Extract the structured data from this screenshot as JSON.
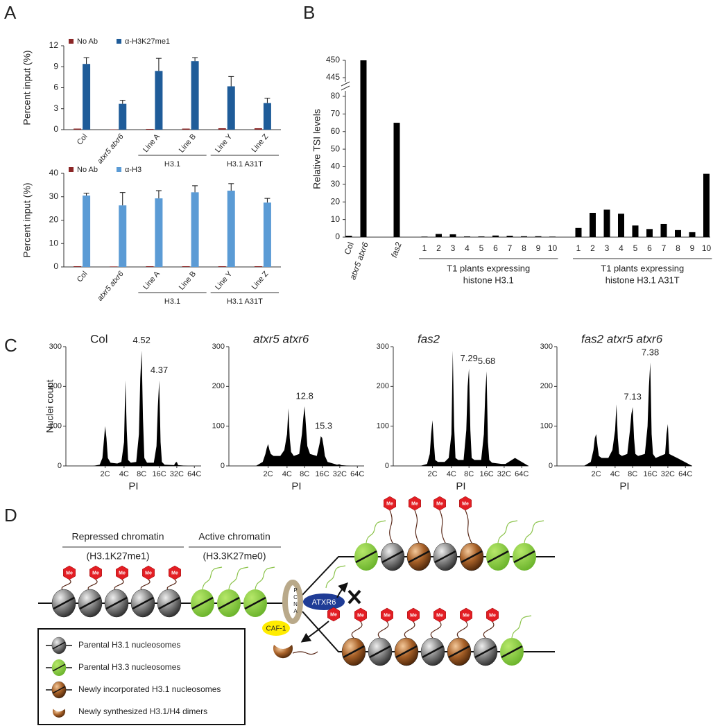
{
  "panel_labels": [
    "A",
    "B",
    "C",
    "D"
  ],
  "chart_data": [
    {
      "type": "bar",
      "ylabel": "Percent input (%)",
      "categories": [
        "Col",
        "atxr5 atxr6",
        "Line A",
        "Line B",
        "Line Y",
        "Line Z"
      ],
      "series": [
        {
          "name": "No Ab",
          "color": "#8b2626",
          "values": [
            0.15,
            0.05,
            0.1,
            0.15,
            0.2,
            0.2
          ]
        },
        {
          "name": "α-H3K27me1",
          "color": "#1f5c99",
          "values": [
            9.4,
            3.7,
            8.4,
            9.8,
            6.2,
            3.8
          ],
          "errors": [
            0.9,
            0.5,
            1.8,
            0.5,
            1.4,
            0.7
          ]
        }
      ],
      "groups": [
        {
          "label": "H3.1",
          "categories": [
            "Line A",
            "Line B"
          ]
        },
        {
          "label": "H3.1 A31T",
          "categories": [
            "Line Y",
            "Line Z"
          ]
        }
      ],
      "ylim": [
        0,
        12
      ],
      "yticks": [
        0,
        3,
        6,
        9,
        12
      ]
    },
    {
      "type": "bar",
      "ylabel": "Percent input (%)",
      "categories": [
        "Col",
        "atxr5 atxr6",
        "Line A",
        "Line B",
        "Line Y",
        "Line Z"
      ],
      "series": [
        {
          "name": "No Ab",
          "color": "#8b2626",
          "values": [
            0.3,
            0.2,
            0.3,
            0.3,
            0.3,
            0.3
          ]
        },
        {
          "name": "α-H3",
          "color": "#5b9bd5",
          "values": [
            30.5,
            26.3,
            29.3,
            31.9,
            32.6,
            27.5
          ],
          "errors": [
            1.0,
            5.5,
            3.3,
            2.8,
            3.0,
            1.8
          ]
        }
      ],
      "groups": [
        {
          "label": "H3.1",
          "categories": [
            "Line A",
            "Line B"
          ]
        },
        {
          "label": "H3.1 A31T",
          "categories": [
            "Line Y",
            "Line Z"
          ]
        }
      ],
      "ylim": [
        0,
        40
      ],
      "yticks": [
        0,
        10,
        20,
        30,
        40
      ]
    },
    {
      "type": "bar",
      "ylabel": "Relative TSI levels",
      "color": "#000000",
      "categories": [
        "Col",
        "atxr5 atxr6",
        "fas2"
      ],
      "values": [
        0.8,
        450,
        65
      ],
      "groups": [
        {
          "label": [
            "T1 plants expressing",
            "histone H3.1"
          ],
          "categories": [
            "1",
            "2",
            "3",
            "4",
            "5",
            "6",
            "7",
            "8",
            "9",
            "10"
          ],
          "values": [
            0.3,
            1.8,
            1.6,
            0.4,
            0.4,
            0.9,
            0.8,
            0.5,
            0.5,
            0.3
          ]
        },
        {
          "label": [
            "T1 plants expressing",
            "histone H3.1 A31T"
          ],
          "categories": [
            "1",
            "2",
            "3",
            "4",
            "5",
            "6",
            "7",
            "8",
            "9",
            "10"
          ],
          "values": [
            5.2,
            13.8,
            15.6,
            13.3,
            6.6,
            4.6,
            7.5,
            4.0,
            2.8,
            36
          ]
        }
      ],
      "ylim": [
        0,
        450
      ],
      "ybreak": [
        80,
        445
      ],
      "yticks": [
        0,
        10,
        20,
        30,
        40,
        50,
        60,
        70,
        80,
        445,
        450
      ]
    },
    {
      "type": "area",
      "title": "Col",
      "ylabel": "Nuclei count",
      "xlabel": "PI",
      "color": "#000000",
      "x": [
        20,
        25,
        27,
        28,
        29,
        30,
        31,
        33,
        38,
        41,
        43,
        44,
        45,
        46,
        48,
        52,
        54,
        55,
        56,
        57,
        58,
        60,
        65,
        67,
        68,
        69,
        70,
        71,
        73,
        80,
        81,
        82,
        83,
        90,
        100
      ],
      "values": [
        0,
        3,
        20,
        60,
        100,
        70,
        20,
        8,
        6,
        10,
        60,
        215,
        90,
        15,
        8,
        10,
        80,
        220,
        290,
        120,
        20,
        8,
        8,
        50,
        150,
        215,
        60,
        10,
        3,
        2,
        8,
        10,
        2,
        0,
        0
      ],
      "annotations": [
        {
          "text": "4.52",
          "x": 56,
          "y": 290
        },
        {
          "text": "4.37",
          "x": 69,
          "y": 215
        }
      ],
      "xlim": [
        0,
        100
      ],
      "xticks": [
        {
          "value": 29,
          "label": "2C"
        },
        {
          "value": 43,
          "label": "4C"
        },
        {
          "value": 56,
          "label": "8C"
        },
        {
          "value": 69,
          "label": "16C"
        },
        {
          "value": 82,
          "label": "32C"
        },
        {
          "value": 95,
          "label": "64C"
        }
      ],
      "ylim": [
        0,
        300
      ],
      "yticks": [
        0,
        100,
        200,
        300
      ]
    },
    {
      "type": "area",
      "title": "atxr5 atxr6",
      "xlabel": "PI",
      "color": "#000000",
      "x": [
        20,
        25,
        27,
        28,
        29,
        30,
        31,
        33,
        38,
        41,
        43,
        44,
        45,
        46,
        48,
        52,
        54,
        55,
        56,
        57,
        58,
        60,
        65,
        67,
        68,
        69,
        70,
        71,
        73,
        80,
        81,
        82,
        83,
        90,
        100
      ],
      "values": [
        0,
        10,
        30,
        45,
        55,
        40,
        30,
        25,
        25,
        40,
        80,
        145,
        70,
        35,
        25,
        30,
        80,
        120,
        150,
        100,
        50,
        30,
        25,
        55,
        75,
        70,
        50,
        25,
        10,
        3,
        4,
        4,
        2,
        0,
        0
      ],
      "annotations": [
        {
          "text": "12.8",
          "x": 56,
          "y": 150
        },
        {
          "text": "15.3",
          "x": 70,
          "y": 75
        }
      ],
      "xlim": [
        0,
        100
      ],
      "xticks": [
        {
          "value": 29,
          "label": "2C"
        },
        {
          "value": 43,
          "label": "4C"
        },
        {
          "value": 56,
          "label": "8C"
        },
        {
          "value": 69,
          "label": "16C"
        },
        {
          "value": 82,
          "label": "32C"
        },
        {
          "value": 95,
          "label": "64C"
        }
      ],
      "ylim": [
        0,
        300
      ],
      "yticks": [
        0,
        100,
        200,
        300
      ]
    },
    {
      "type": "area",
      "title": "fas2",
      "xlabel": "PI",
      "color": "#000000",
      "x": [
        20,
        25,
        27,
        28,
        29,
        30,
        31,
        33,
        38,
        41,
        43,
        44,
        45,
        46,
        48,
        52,
        54,
        55,
        56,
        57,
        58,
        60,
        65,
        67,
        68,
        69,
        70,
        71,
        73,
        80,
        81,
        82,
        83,
        90,
        100
      ],
      "values": [
        0,
        5,
        30,
        80,
        115,
        60,
        15,
        10,
        10,
        20,
        80,
        290,
        100,
        20,
        15,
        15,
        90,
        200,
        245,
        90,
        20,
        15,
        15,
        80,
        180,
        238,
        60,
        15,
        8,
        5,
        5,
        5,
        5,
        20,
        0
      ],
      "annotations": [
        {
          "text": "7.29",
          "x": 56,
          "y": 245
        },
        {
          "text": "5.68",
          "x": 69,
          "y": 238
        }
      ],
      "xlim": [
        0,
        100
      ],
      "xticks": [
        {
          "value": 29,
          "label": "2C"
        },
        {
          "value": 43,
          "label": "4C"
        },
        {
          "value": 56,
          "label": "8C"
        },
        {
          "value": 69,
          "label": "16C"
        },
        {
          "value": 82,
          "label": "32C"
        },
        {
          "value": 95,
          "label": "64C"
        }
      ],
      "ylim": [
        0,
        300
      ],
      "yticks": [
        0,
        100,
        200,
        300
      ]
    },
    {
      "type": "area",
      "title": "fas2 atxr5 atxr6",
      "xlabel": "PI",
      "color": "#000000",
      "x": [
        20,
        25,
        27,
        28,
        29,
        30,
        31,
        33,
        38,
        41,
        43,
        44,
        45,
        46,
        48,
        52,
        54,
        55,
        56,
        57,
        58,
        60,
        65,
        67,
        68,
        69,
        70,
        71,
        73,
        80,
        81,
        82,
        83,
        90,
        100
      ],
      "values": [
        0,
        10,
        40,
        70,
        80,
        50,
        25,
        20,
        20,
        40,
        90,
        155,
        70,
        30,
        25,
        30,
        90,
        130,
        148,
        70,
        30,
        25,
        30,
        100,
        200,
        260,
        80,
        30,
        20,
        30,
        80,
        105,
        30,
        18,
        0
      ],
      "annotations": [
        {
          "text": "7.13",
          "x": 56,
          "y": 148
        },
        {
          "text": "7.38",
          "x": 69,
          "y": 260
        }
      ],
      "xlim": [
        0,
        100
      ],
      "xticks": [
        {
          "value": 29,
          "label": "2C"
        },
        {
          "value": 43,
          "label": "4C"
        },
        {
          "value": 56,
          "label": "8C"
        },
        {
          "value": 69,
          "label": "16C"
        },
        {
          "value": 82,
          "label": "32C"
        },
        {
          "value": 95,
          "label": "64C"
        }
      ],
      "ylim": [
        0,
        300
      ],
      "yticks": [
        0,
        100,
        200,
        300
      ]
    }
  ],
  "diagram": {
    "repressed": {
      "title": "Repressed chromatin",
      "subtitle": "(H3.1K27me1)"
    },
    "active": {
      "title": "Active chromatin",
      "subtitle": "(H3.3K27me0)"
    },
    "pcna": [
      "P",
      "C",
      "N",
      "A"
    ],
    "atxr6": "ATXR6",
    "caf1": "CAF-1",
    "methyl": "Me",
    "legend": [
      "Parental H3.1 nucleosomes",
      "Parental H3.3 nucleosomes",
      "Newly incorporated H3.1 nucleosomes",
      "Newly synthesized H3.1/H4 dimers"
    ]
  }
}
